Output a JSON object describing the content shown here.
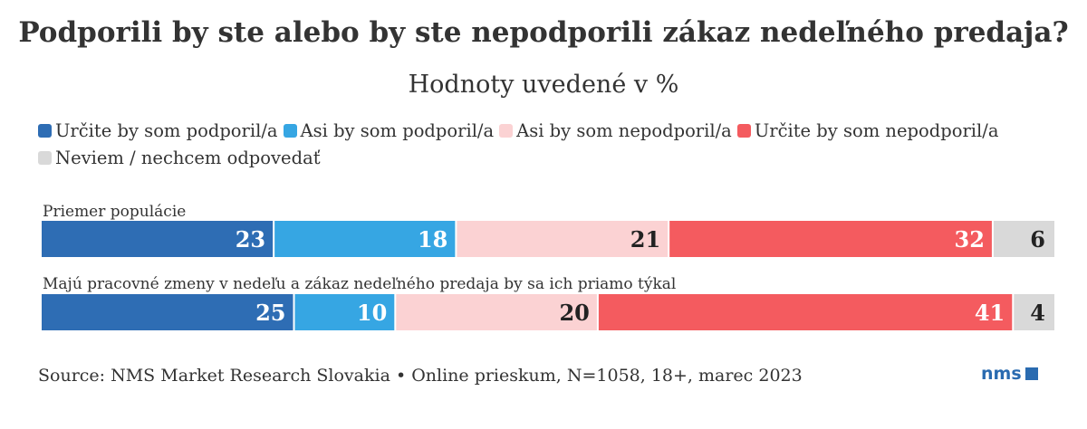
{
  "chart_data": {
    "type": "bar",
    "orientation": "horizontal",
    "stacked": true,
    "title": "Podporili by ste alebo by ste nepodporili zákaz nedeľného predaja?",
    "subtitle": "Hodnoty uvedené v %",
    "categories": [
      "Priemer populácie",
      "Majú pracovné zmeny v nedeľu a zákaz nedeľného predaja by sa ich priamo týkal"
    ],
    "series": [
      {
        "name": "Určite by som podporil/a",
        "color": "#2e6db4",
        "label_color": "#ffffff",
        "values": [
          23,
          25
        ]
      },
      {
        "name": "Asi by som podporil/a",
        "color": "#36a6e3",
        "label_color": "#ffffff",
        "values": [
          18,
          10
        ]
      },
      {
        "name": "Asi by som nepodporil/a",
        "color": "#fbd2d3",
        "label_color": "#222222",
        "values": [
          21,
          20
        ]
      },
      {
        "name": "Určite by som nepodporil/a",
        "color": "#f45b5f",
        "label_color": "#ffffff",
        "values": [
          32,
          41
        ]
      },
      {
        "name": "Neviem / nechcem odpovedať",
        "color": "#d9d9d9",
        "label_color": "#222222",
        "values": [
          6,
          4
        ]
      }
    ],
    "xlim": [
      0,
      100
    ],
    "grid": false,
    "legend_position": "top-left"
  },
  "footer": {
    "source": "Source: NMS Market Research Slovakia • Online prieskum, N=1058, 18+, marec 2023",
    "logo_text": "nms"
  }
}
